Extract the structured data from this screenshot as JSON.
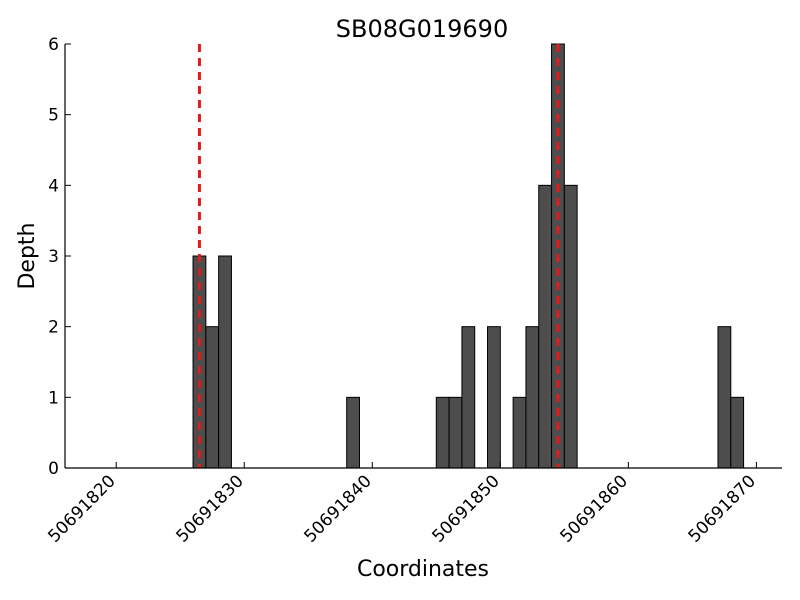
{
  "chart_data": {
    "type": "bar",
    "title": "SB08G019690",
    "xlabel": "Coordinates",
    "ylabel": "Depth",
    "xlim": [
      50691816,
      50691872
    ],
    "ylim": [
      0,
      6
    ],
    "x_ticks": [
      50691820,
      50691830,
      50691840,
      50691850,
      50691860,
      50691870
    ],
    "y_ticks": [
      0,
      1,
      2,
      3,
      4,
      5,
      6
    ],
    "bar_width": 1,
    "colors": {
      "bar": "#4d4d4d",
      "marker": "#e41a1c"
    },
    "bars": [
      {
        "x": 50691826,
        "y": 3
      },
      {
        "x": 50691827,
        "y": 2
      },
      {
        "x": 50691828,
        "y": 3
      },
      {
        "x": 50691838,
        "y": 1
      },
      {
        "x": 50691845,
        "y": 1
      },
      {
        "x": 50691846,
        "y": 1
      },
      {
        "x": 50691847,
        "y": 2
      },
      {
        "x": 50691849,
        "y": 2
      },
      {
        "x": 50691851,
        "y": 1
      },
      {
        "x": 50691852,
        "y": 2
      },
      {
        "x": 50691853,
        "y": 4
      },
      {
        "x": 50691854,
        "y": 6
      },
      {
        "x": 50691855,
        "y": 4
      },
      {
        "x": 50691867,
        "y": 2
      },
      {
        "x": 50691868,
        "y": 1
      }
    ],
    "markers": [
      {
        "x": 50691826.5,
        "style": "dashed"
      },
      {
        "x": 50691854.5,
        "style": "dashed"
      }
    ],
    "grid": false,
    "legend": "none"
  }
}
